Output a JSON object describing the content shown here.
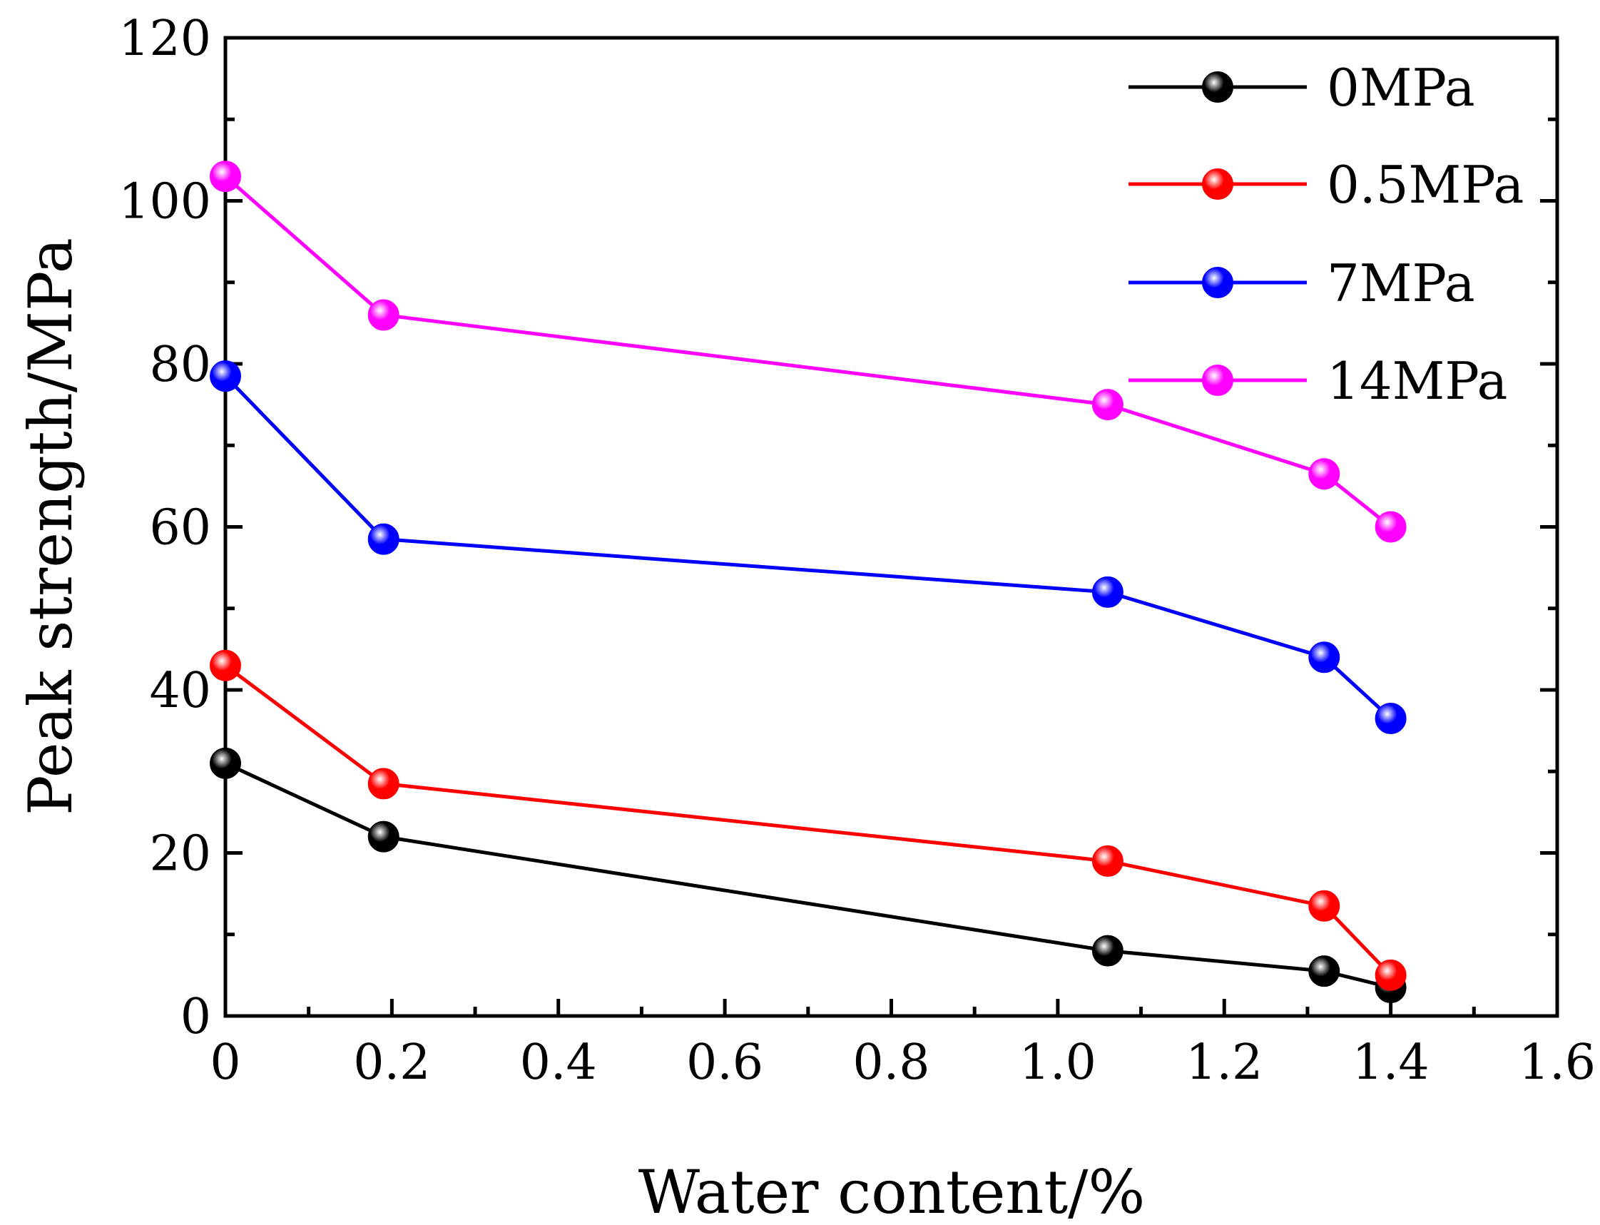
{
  "chart_data": {
    "type": "line",
    "title": "",
    "xlabel": "Water content/%",
    "ylabel": "Peak strength/MPa",
    "xlim": [
      0,
      1.6
    ],
    "ylim": [
      0,
      120
    ],
    "xticks": [
      0,
      0.2,
      0.4,
      0.6,
      0.8,
      1.0,
      1.2,
      1.4,
      1.6
    ],
    "xtick_labels": [
      "0",
      "0.2",
      "0.4",
      "0.6",
      "0.8",
      "1.0",
      "1.2",
      "1.4",
      "1.6"
    ],
    "yticks": [
      0,
      20,
      40,
      60,
      80,
      100,
      120
    ],
    "ytick_labels": [
      "0",
      "20",
      "40",
      "60",
      "80",
      "100",
      "120"
    ],
    "grid": false,
    "legend_position": "top-right",
    "x": [
      0,
      0.19,
      1.06,
      1.32,
      1.4
    ],
    "series": [
      {
        "name": "0MPa",
        "color": "#000000",
        "values": [
          31,
          22,
          8,
          5.5,
          3.5
        ]
      },
      {
        "name": "0.5MPa",
        "color": "#ff0000",
        "values": [
          43,
          28.5,
          19,
          13.5,
          5
        ]
      },
      {
        "name": "7MPa",
        "color": "#0000ff",
        "values": [
          78.5,
          58.5,
          52,
          44,
          36.5
        ]
      },
      {
        "name": "14MPa",
        "color": "#ff00ff",
        "values": [
          103,
          86,
          75,
          66.5,
          60
        ]
      }
    ]
  }
}
